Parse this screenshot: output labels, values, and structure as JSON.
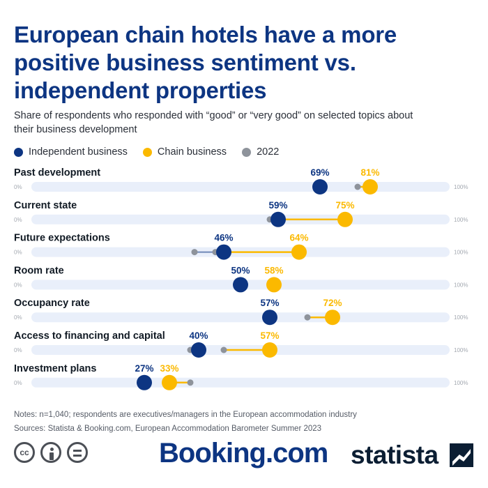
{
  "title": "European chain hotels have a more positive business sentiment vs. independent properties",
  "subtitle": "Share of respondents who responded with “good” or “very good” on selected topics about their business development",
  "legend": {
    "independent": "Independent business",
    "chain": "Chain business",
    "previous": "2022"
  },
  "colors": {
    "independent": "#0d3582",
    "chain": "#fbb900",
    "previous": "#8e939b",
    "track": "#e9effa"
  },
  "chart_data": {
    "type": "dot",
    "xlim": [
      0,
      100
    ],
    "axis_min_label": "0%",
    "axis_max_label": "100%",
    "categories": [
      "Past development",
      "Current state",
      "Future expectations",
      "Room rate",
      "Occupancy rate",
      "Access to financing and capital",
      "Investment plans"
    ],
    "series": [
      {
        "name": "Independent business",
        "values": [
          69,
          59,
          46,
          50,
          57,
          40,
          27
        ],
        "labels": [
          "69%",
          "59%",
          "46%",
          "50%",
          "57%",
          "40%",
          "27%"
        ]
      },
      {
        "name": "Chain business",
        "values": [
          81,
          75,
          64,
          58,
          72,
          57,
          33
        ],
        "labels": [
          "81%",
          "75%",
          "64%",
          "58%",
          "72%",
          "57%",
          "33%"
        ]
      },
      {
        "name": "Independent business 2022",
        "values": [
          69,
          57,
          39,
          50,
          57,
          38,
          27
        ]
      },
      {
        "name": "Chain business 2022",
        "values": [
          78,
          58,
          44,
          58,
          66,
          46,
          38
        ]
      }
    ]
  },
  "notes": "Notes: n=1,040; respondents are executives/managers in the European accommodation industry",
  "sources": "Sources: Statista & Booking.com, European Accommodation Barometer Summer 2023",
  "footer": {
    "booking_logo": "Booking.com",
    "statista_logo": "statista",
    "cc_icon_text": "cc",
    "eq_icon_text": ""
  }
}
